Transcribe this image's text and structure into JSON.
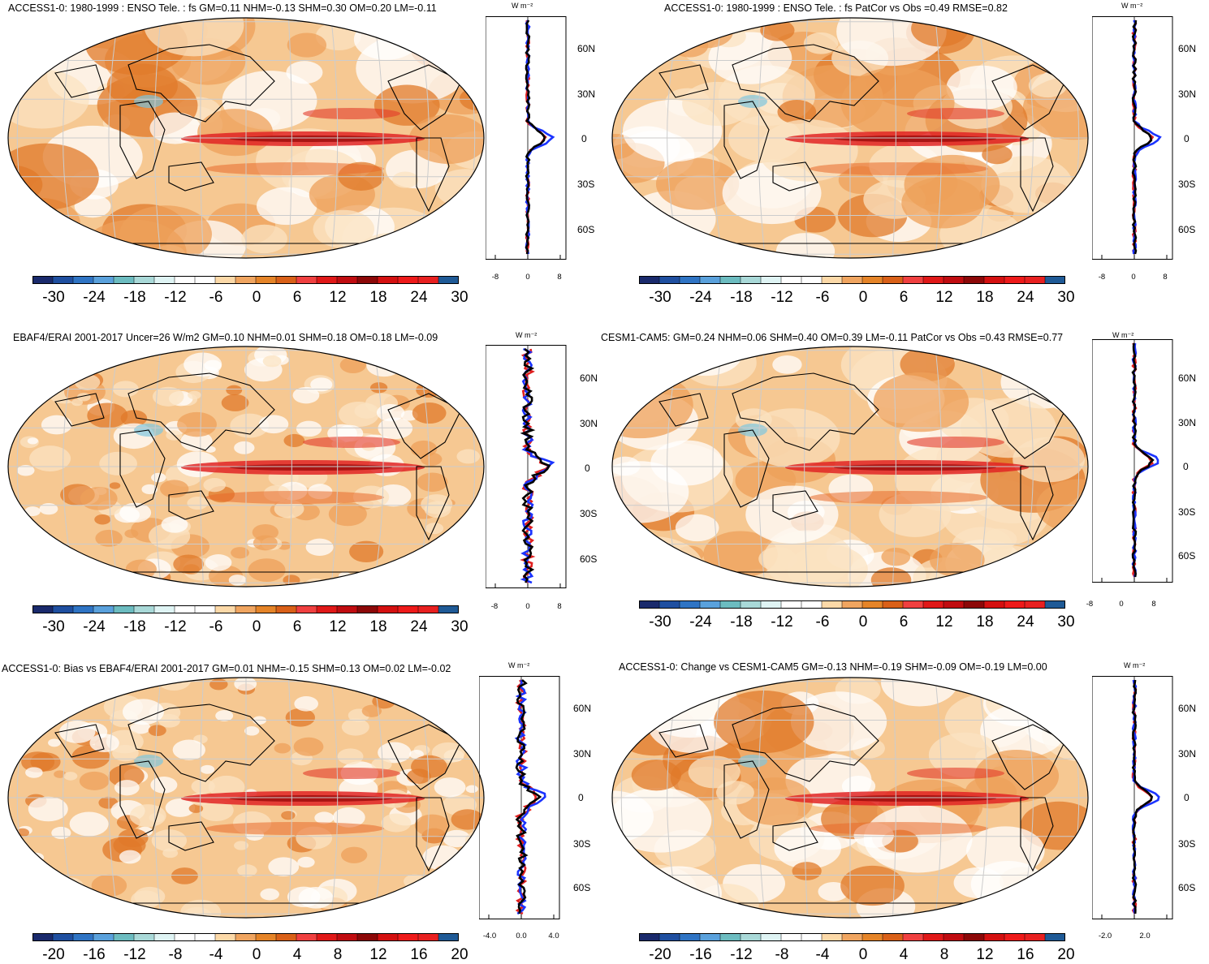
{
  "colors": {
    "palette": [
      "#1a2a6c",
      "#1f4fa0",
      "#2f74c4",
      "#5aa1dc",
      "#6cbcc0",
      "#a9d9d8",
      "#dff4f4",
      "#ffffff",
      "#ffffff",
      "#fcd9a8",
      "#f0a560",
      "#e58428",
      "#d96018",
      "#f04040",
      "#e01818",
      "#c00c10",
      "#8c0808",
      "#d41010",
      "#ee1a1a",
      "#e82020",
      "#1f5a96"
    ],
    "land": "#000000",
    "grid": "#cccccc",
    "zonal_model": "#e02020",
    "zonal_obs": "#1a33ff",
    "zonal_total": "#000000"
  },
  "panels": [
    {
      "id": "p1",
      "title": "ACCESS1-0: 1980-1999 : ENSO Tele. : fs GM=0.11 NHM=-0.13 SHM=0.30 OM=0.20 LM=-0.11",
      "units": "W m⁻²",
      "lat_labels": [
        "60N",
        "30N",
        "0",
        "30S",
        "60S"
      ],
      "x_labels": [
        "-8",
        "0",
        "8"
      ],
      "colorbar_labels": [
        "-30",
        "-24",
        "-18",
        "-12",
        "-6",
        "0",
        "6",
        "12",
        "18",
        "24",
        "30"
      ]
    },
    {
      "id": "p2",
      "title": "ACCESS1-0: 1980-1999 : ENSO Tele. : fs PatCor vs Obs =0.49 RMSE=0.82",
      "units": "W m⁻²",
      "lat_labels": [
        "60N",
        "30N",
        "0",
        "30S",
        "60S"
      ],
      "x_labels": [
        "-8",
        "0",
        "8"
      ],
      "colorbar_labels": [
        "-30",
        "-24",
        "-18",
        "-12",
        "-6",
        "0",
        "6",
        "12",
        "18",
        "24",
        "30"
      ]
    },
    {
      "id": "p3",
      "title": "EBAF4/ERAI 2001-2017 Uncer=26 W/m2 GM=0.10 NHM=0.01 SHM=0.18 OM=0.18 LM=-0.09",
      "units": "W m⁻²",
      "lat_labels": [
        "60N",
        "30N",
        "0",
        "30S",
        "60S"
      ],
      "x_labels": [
        "-8",
        "0",
        "8"
      ],
      "colorbar_labels": [
        "-30",
        "-24",
        "-18",
        "-12",
        "-6",
        "0",
        "6",
        "12",
        "18",
        "24",
        "30"
      ]
    },
    {
      "id": "p4",
      "title": "CESM1-CAM5: GM=0.24 NHM=0.06 SHM=0.40 OM=0.39 LM=-0.11 PatCor vs Obs =0.43 RMSE=0.77",
      "units": "W m⁻²",
      "lat_labels": [
        "60N",
        "30N",
        "0",
        "30S",
        "60S"
      ],
      "x_labels": [
        "-8",
        "0",
        "8"
      ],
      "colorbar_labels": [
        "-30",
        "-24",
        "-18",
        "-12",
        "-6",
        "0",
        "6",
        "12",
        "18",
        "24",
        "30"
      ]
    },
    {
      "id": "p5",
      "title": "ACCESS1-0: Bias vs EBAF4/ERAI 2001-2017 GM=0.01 NHM=-0.15 SHM=0.13 OM=0.02 LM=-0.02",
      "units": "W m⁻²",
      "lat_labels": [
        "60N",
        "30N",
        "0",
        "30S",
        "60S"
      ],
      "x_labels": [
        "-4.0",
        "0.0",
        "4.0"
      ],
      "colorbar_labels": [
        "-20",
        "-16",
        "-12",
        "-8",
        "-4",
        "0",
        "4",
        "8",
        "12",
        "16",
        "20"
      ]
    },
    {
      "id": "p6",
      "title": "ACCESS1-0: Change vs CESM1-CAM5 GM=-0.13 NHM=-0.19 SHM=-0.09 OM=-0.19 LM=0.00",
      "units": "W m⁻²",
      "lat_labels": [
        "60N",
        "30N",
        "0",
        "30S",
        "60S"
      ],
      "x_labels": [
        "-2.0",
        "2.0"
      ],
      "colorbar_labels": [
        "-20",
        "-16",
        "-12",
        "-8",
        "-4",
        "0",
        "4",
        "8",
        "12",
        "16",
        "20"
      ]
    }
  ]
}
